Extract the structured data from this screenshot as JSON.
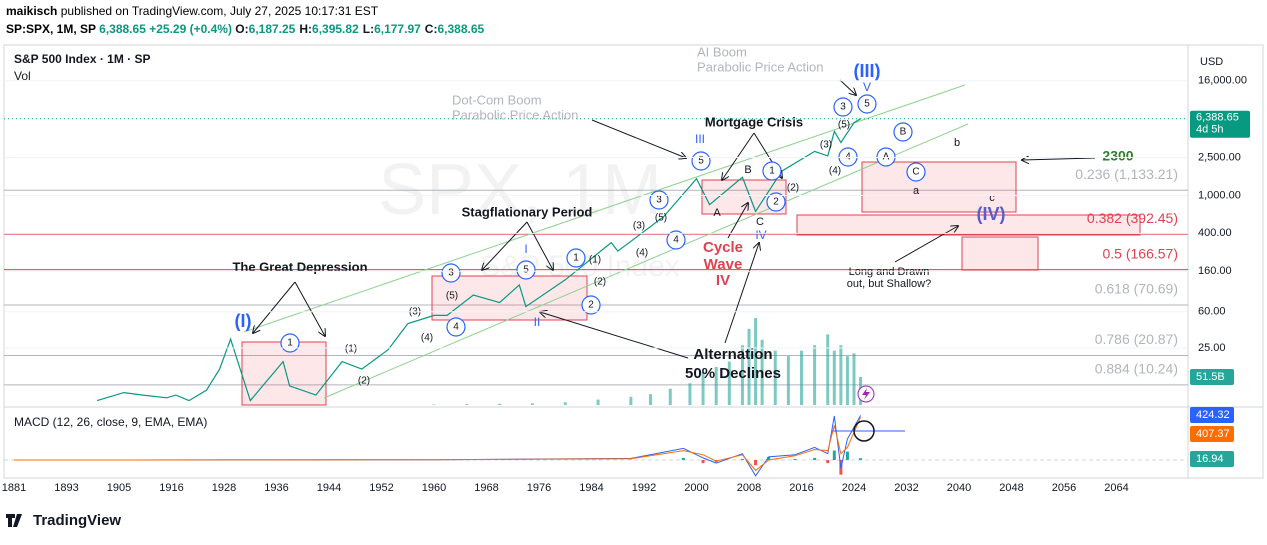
{
  "header": {
    "author": "maikisch",
    "published": "published on TradingView.com, July 27, 2025 10:17:31 EST"
  },
  "symbol_bar": {
    "symbol": "SP:SPX, 1M, SP",
    "price": "6,388.65",
    "change": "+25.29 (+0.4%)",
    "ohlc": [
      {
        "key": "O:",
        "value": "6,187.25"
      },
      {
        "key": "H:",
        "value": "6,395.82"
      },
      {
        "key": "L:",
        "value": "6,177.97"
      },
      {
        "key": "C:",
        "value": "6,388.65"
      }
    ]
  },
  "legend": {
    "title": "S&P 500 Index · 1M · SP",
    "volume": "Vol",
    "macd": "MACD (12, 26, close, 9, EMA, EMA)"
  },
  "watermark": {
    "symbol": "SPX, 1M",
    "name": "S&P 500 Index"
  },
  "price_axis": {
    "currency": "USD",
    "scale": "log",
    "ylim": [
      6.3,
      38000
    ],
    "ticks": [
      {
        "value": 16000,
        "label": "16,000.00"
      },
      {
        "value": 2500,
        "label": "2,500.00"
      },
      {
        "value": 1000,
        "label": "1,000.00"
      },
      {
        "value": 400,
        "label": "400.00"
      },
      {
        "value": 160,
        "label": "160.00"
      },
      {
        "value": 60,
        "label": "60.00"
      },
      {
        "value": 25,
        "label": "25.00"
      }
    ],
    "last": {
      "value": 6388.65,
      "label": "6,388.65"
    },
    "countdown": "4d 5h"
  },
  "time_axis": {
    "ticks": [
      {
        "value": 1881,
        "label": "1881"
      },
      1893,
      1905,
      1916,
      1928,
      1936,
      1944,
      1952,
      1960,
      1968,
      1976,
      1984,
      1992,
      2000,
      2008,
      2016,
      2024,
      2032,
      2040,
      2048,
      2056,
      2064
    ]
  },
  "price_series": {
    "color": "#089981",
    "x": [
      1900,
      1906,
      1910,
      1915,
      1917,
      1920,
      1924,
      1927,
      1929,
      1932,
      1937,
      1938,
      1942,
      1946,
      1949,
      1953,
      1956,
      1960,
      1962,
      1966,
      1970,
      1973,
      1974,
      1980,
      1987,
      1988,
      1990,
      1995,
      2000,
      2002,
      2007,
      2009,
      2013,
      2018,
      2020,
      2021,
      2022,
      2024,
      2025
    ],
    "values": [
      7,
      8.5,
      8,
      7.5,
      8,
      7,
      9,
      15,
      31,
      7,
      18,
      10,
      8,
      18,
      15,
      24,
      45,
      55,
      55,
      90,
      75,
      115,
      68,
      130,
      320,
      260,
      330,
      600,
      1500,
      800,
      1550,
      680,
      1800,
      2900,
      2600,
      4700,
      3600,
      5800,
      6388.65
    ]
  },
  "volume": {
    "color": "#26a69a",
    "x": [
      1960,
      1965,
      1970,
      1975,
      1980,
      1985,
      1990,
      1993,
      1996,
      1999,
      2001,
      2003,
      2005,
      2007,
      2008,
      2009,
      2010,
      2012,
      2014,
      2016,
      2018,
      2020,
      2021,
      2022,
      2023,
      2024,
      2025
    ],
    "values": [
      1,
      1.5,
      2,
      3,
      5,
      10,
      15,
      20,
      30,
      40,
      60,
      70,
      80,
      110,
      140,
      160,
      120,
      100,
      90,
      100,
      110,
      130,
      100,
      110,
      90,
      95,
      51.5
    ],
    "last_label": "51.5B"
  },
  "macd": {
    "x": [
      1881,
      1928,
      1960,
      1990,
      1998,
      2001,
      2003,
      2007,
      2009,
      2011,
      2015,
      2018,
      2020,
      2021,
      2022,
      2023,
      2025
    ],
    "macd": [
      0,
      1,
      3,
      15,
      110,
      20,
      -30,
      60,
      -150,
      30,
      50,
      120,
      60,
      420,
      -80,
      200,
      424.32
    ],
    "signal": [
      0,
      1,
      3,
      12,
      90,
      50,
      -10,
      50,
      -100,
      0,
      40,
      100,
      90,
      330,
      60,
      120,
      407.37
    ],
    "histogram": [
      0,
      0,
      0,
      3,
      20,
      -30,
      -20,
      10,
      -50,
      30,
      10,
      20,
      -30,
      90,
      -140,
      80,
      16.94
    ]
  },
  "fib_levels": [
    {
      "ratio": 0.236,
      "price": 1133.21,
      "label": "0.236 (1,133.21)",
      "color": "#b2b5be"
    },
    {
      "ratio": 0.382,
      "price": 392.45,
      "label": "0.382 (392.45)",
      "color": "#e0424f"
    },
    {
      "ratio": 0.5,
      "price": 166.57,
      "label": "0.5 (166.57)",
      "color": "#e0424f"
    },
    {
      "ratio": 0.618,
      "price": 70.69,
      "label": "0.618 (70.69)",
      "color": "#b2b5be"
    },
    {
      "ratio": 0.786,
      "price": 20.87,
      "label": "0.786 (20.87)",
      "color": "#b2b5be"
    },
    {
      "ratio": 0.884,
      "price": 10.24,
      "label": "0.884 (10.24)",
      "color": "#b2b5be"
    }
  ],
  "waves": [
    "(I)",
    "1",
    "(1)",
    "(2)",
    "(3)",
    "(4)",
    "3",
    "(5)",
    "4",
    "I",
    "5",
    "II",
    "1",
    "(1)",
    "(2)",
    "2",
    "(3)",
    "(4)",
    "3",
    "(5)",
    "4",
    "III",
    "5",
    "A",
    "B",
    "C",
    "IV",
    "1",
    "2",
    "(2)",
    "(3)",
    "(4)",
    "(5)",
    "3",
    "4",
    "V",
    "5",
    "(III)",
    "A",
    "B",
    "C",
    "a",
    "b",
    "c",
    "(IV)"
  ],
  "annotations": {
    "great_depression": "The Great Depression",
    "stagflation": "Stagflationary Period",
    "mortgage": "Mortgage Crisis",
    "dotcom": [
      "Dot-Com Boom",
      "Parabolic Price Action"
    ],
    "ai": [
      "AI Boom",
      "Parabolic Price Action"
    ],
    "cycle": [
      "Cycle",
      "Wave",
      "IV"
    ],
    "alternation": [
      "Alternation",
      "50% Declines"
    ],
    "target": "2300",
    "shallow": [
      "Long and Drawn",
      "out, but Shallow?"
    ]
  },
  "footer": {
    "brand": "TradingView"
  }
}
